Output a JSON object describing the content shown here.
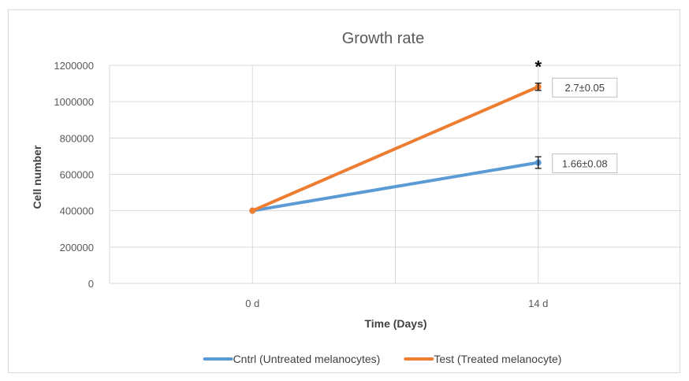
{
  "chart_data": {
    "type": "line",
    "title": "Growth rate",
    "xlabel": "Time (Days)",
    "ylabel": "Cell number",
    "categories": [
      "0 d",
      "14 d"
    ],
    "ylim": [
      0,
      1200000
    ],
    "yticks": [
      0,
      200000,
      400000,
      600000,
      800000,
      1000000,
      1200000
    ],
    "ytick_labels": [
      "0",
      "200000",
      "400000",
      "600000",
      "800000",
      "1000000",
      "1200000"
    ],
    "grid": true,
    "legend_position": "bottom",
    "series": [
      {
        "name": "Cntrl (Untreated melanocytes)",
        "color": "#5b9bd5",
        "values": [
          400000,
          665000
        ],
        "error": [
          0,
          32000
        ],
        "annotation": "1.66±0.08"
      },
      {
        "name": "Test (Treated melanocyte)",
        "color": "#ed7d31",
        "values": [
          400000,
          1082000
        ],
        "error": [
          0,
          20000
        ],
        "annotation": "2.7±0.05",
        "significance": "*"
      }
    ]
  }
}
